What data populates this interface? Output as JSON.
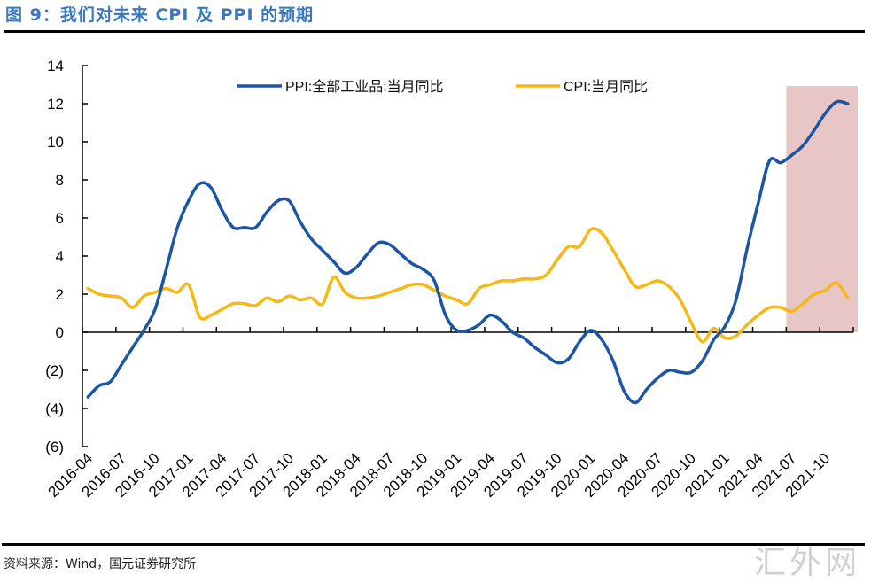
{
  "title": "图 9：我们对未来 CPI 及 PPI 的预期",
  "source": "资料来源：Wind，国元证券研究所",
  "watermark": "汇外网",
  "chart_data": {
    "type": "line",
    "title": "",
    "xlabel": "",
    "ylabel": "",
    "ylim": [
      -6,
      14
    ],
    "y_ticks": [
      14,
      12,
      10,
      8,
      6,
      4,
      2,
      0,
      -2,
      -4,
      -6
    ],
    "y_tick_labels": [
      "14",
      "12",
      "10",
      "8",
      "6",
      "4",
      "2",
      "0",
      "(2)",
      "(4)",
      "(6)"
    ],
    "x": [
      "2016-04",
      "2016-05",
      "2016-06",
      "2016-07",
      "2016-08",
      "2016-09",
      "2016-10",
      "2016-11",
      "2016-12",
      "2017-01",
      "2017-02",
      "2017-03",
      "2017-04",
      "2017-05",
      "2017-06",
      "2017-07",
      "2017-08",
      "2017-09",
      "2017-10",
      "2017-11",
      "2017-12",
      "2018-01",
      "2018-02",
      "2018-03",
      "2018-04",
      "2018-05",
      "2018-06",
      "2018-07",
      "2018-08",
      "2018-09",
      "2018-10",
      "2018-11",
      "2018-12",
      "2019-01",
      "2019-02",
      "2019-03",
      "2019-04",
      "2019-05",
      "2019-06",
      "2019-07",
      "2019-08",
      "2019-09",
      "2019-10",
      "2019-11",
      "2019-12",
      "2020-01",
      "2020-02",
      "2020-03",
      "2020-04",
      "2020-05",
      "2020-06",
      "2020-07",
      "2020-08",
      "2020-09",
      "2020-10",
      "2020-11",
      "2020-12",
      "2021-01",
      "2021-02",
      "2021-03",
      "2021-04",
      "2021-05",
      "2021-06",
      "2021-07",
      "2021-08",
      "2021-09",
      "2021-10",
      "2021-11",
      "2021-12"
    ],
    "x_tick_labels": [
      "2016-04",
      "2016-07",
      "2016-10",
      "2017-01",
      "2017-04",
      "2017-07",
      "2017-10",
      "2018-01",
      "2018-04",
      "2018-07",
      "2018-10",
      "2019-01",
      "2019-04",
      "2019-07",
      "2019-10",
      "2020-01",
      "2020-04",
      "2020-07",
      "2020-10",
      "2021-01",
      "2021-04",
      "2021-07",
      "2021-10"
    ],
    "series": [
      {
        "name": "PPI:全部工业品:当月同比",
        "color": "#1b55a3",
        "values": [
          -3.4,
          -2.8,
          -2.6,
          -1.7,
          -0.8,
          0.1,
          1.2,
          3.3,
          5.5,
          6.9,
          7.8,
          7.6,
          6.4,
          5.5,
          5.5,
          5.5,
          6.3,
          6.9,
          6.9,
          5.8,
          4.9,
          4.3,
          3.7,
          3.1,
          3.4,
          4.1,
          4.7,
          4.6,
          4.1,
          3.6,
          3.3,
          2.7,
          0.9,
          0.1,
          0.1,
          0.4,
          0.9,
          0.6,
          0.0,
          -0.3,
          -0.8,
          -1.2,
          -1.6,
          -1.4,
          -0.5,
          0.1,
          -0.4,
          -1.5,
          -3.1,
          -3.7,
          -3.0,
          -2.4,
          -2.0,
          -2.1,
          -2.1,
          -1.5,
          -0.4,
          0.3,
          1.7,
          4.4,
          6.8,
          9.0,
          8.9,
          9.3,
          9.8,
          10.6,
          11.5,
          12.1,
          12.0
        ]
      },
      {
        "name": "CPI:当月同比",
        "color": "#f5b814",
        "values": [
          2.3,
          2.0,
          1.9,
          1.8,
          1.3,
          1.9,
          2.1,
          2.3,
          2.1,
          2.5,
          0.8,
          0.9,
          1.2,
          1.5,
          1.5,
          1.4,
          1.8,
          1.6,
          1.9,
          1.7,
          1.8,
          1.5,
          2.9,
          2.1,
          1.8,
          1.8,
          1.9,
          2.1,
          2.3,
          2.5,
          2.5,
          2.2,
          1.9,
          1.7,
          1.5,
          2.3,
          2.5,
          2.7,
          2.7,
          2.8,
          2.8,
          3.0,
          3.8,
          4.5,
          4.5,
          5.4,
          5.2,
          4.3,
          3.3,
          2.4,
          2.5,
          2.7,
          2.4,
          1.7,
          0.5,
          -0.5,
          0.2,
          -0.3,
          -0.2,
          0.4,
          0.9,
          1.3,
          1.3,
          1.1,
          1.5,
          2.0,
          2.2,
          2.6,
          1.8
        ]
      }
    ],
    "highlight": {
      "from": "2021-07",
      "to": "2021-12",
      "color": "#e8c6c6"
    },
    "legend": "top",
    "grid": false
  }
}
